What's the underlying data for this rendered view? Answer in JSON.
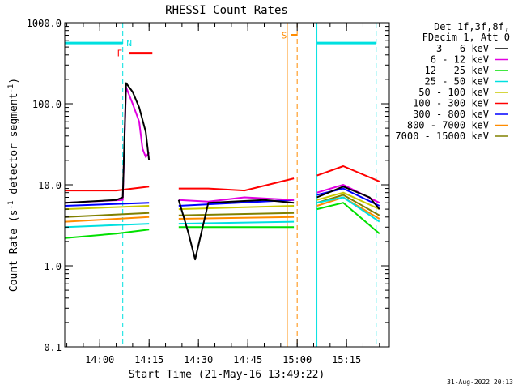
{
  "chart_data": {
    "type": "line",
    "title": "RHESSI Count Rates",
    "xlabel": "Start Time (21-May-16 13:49:22)",
    "ylabel_main": "Count Rate (s",
    "ylabel_sup1": "-1",
    "ylabel_mid": " detector segment",
    "ylabel_sup2": "-1",
    "ylabel_end": ")",
    "yscale": "log",
    "ylim": [
      0.1,
      1000.0
    ],
    "xlim": [
      "13:49:22",
      "15:28:00"
    ],
    "y_ticks": [
      "0.1",
      "1.0",
      "10.0",
      "100.0",
      "1000.0"
    ],
    "x_ticks": [
      "14:00",
      "14:15",
      "14:30",
      "14:45",
      "15:00",
      "15:15"
    ],
    "legend_header": [
      "Det 1f,3f,8f,",
      "FDecim 1, Att 0"
    ],
    "footer_date": "31-Aug-2022 20:13",
    "series": [
      {
        "name": "3 - 6 keV",
        "color": "#000000",
        "points": [
          [
            "13:49:30",
            6.0
          ],
          [
            "14:05",
            6.5
          ],
          [
            "14:07",
            7.0
          ],
          [
            "14:08",
            180
          ],
          [
            "14:10",
            140
          ],
          [
            "14:12",
            90
          ],
          [
            "14:14",
            45
          ],
          [
            "14:15",
            20
          ],
          [
            "14:16",
            null
          ],
          [
            "14:24",
            6.5
          ],
          [
            "14:27",
            2.5
          ],
          [
            "14:29",
            1.2
          ],
          [
            "14:33",
            6.0
          ],
          [
            "14:50",
            6.5
          ],
          [
            "14:59",
            6.0
          ],
          [
            "15:03",
            null
          ],
          [
            "15:06",
            7.0
          ],
          [
            "15:14",
            9.5
          ],
          [
            "15:22",
            7.0
          ],
          [
            "15:25",
            5.0
          ]
        ]
      },
      {
        "name": "6 - 12 keV",
        "color": "#e000e0",
        "points": [
          [
            "13:49:30",
            6.0
          ],
          [
            "14:07",
            6.5
          ],
          [
            "14:08",
            160
          ],
          [
            "14:10",
            100
          ],
          [
            "14:12",
            60
          ],
          [
            "14:13",
            28
          ],
          [
            "14:14",
            22
          ],
          [
            "14:15",
            25
          ],
          [
            "14:16",
            null
          ],
          [
            "14:24",
            6.5
          ],
          [
            "14:33",
            6.2
          ],
          [
            "14:44",
            7.0
          ],
          [
            "14:59",
            6.5
          ],
          [
            "15:03",
            null
          ],
          [
            "15:06",
            8.0
          ],
          [
            "15:14",
            10.0
          ],
          [
            "15:25",
            6.0
          ]
        ]
      },
      {
        "name": "12 - 25 keV",
        "color": "#00e000",
        "points": [
          [
            "13:49:30",
            2.2
          ],
          [
            "14:05",
            2.5
          ],
          [
            "14:15",
            2.8
          ],
          [
            "14:16",
            null
          ],
          [
            "14:24",
            3.0
          ],
          [
            "14:45",
            3.0
          ],
          [
            "14:59",
            3.0
          ],
          [
            "15:03",
            null
          ],
          [
            "15:06",
            5.0
          ],
          [
            "15:14",
            6.0
          ],
          [
            "15:25",
            2.5
          ]
        ]
      },
      {
        "name": "25 - 50 keV",
        "color": "#00e0e0",
        "points": [
          [
            "13:49:30",
            3.0
          ],
          [
            "14:15",
            3.3
          ],
          [
            "14:16",
            null
          ],
          [
            "14:24",
            3.3
          ],
          [
            "14:59",
            3.5
          ],
          [
            "15:03",
            null
          ],
          [
            "15:06",
            6.0
          ],
          [
            "15:14",
            7.0
          ],
          [
            "15:25",
            3.5
          ]
        ]
      },
      {
        "name": "50 - 100 keV",
        "color": "#c8c800",
        "points": [
          [
            "13:49:30",
            5.0
          ],
          [
            "14:15",
            5.5
          ],
          [
            "14:16",
            null
          ],
          [
            "14:24",
            5.0
          ],
          [
            "14:59",
            5.5
          ],
          [
            "15:03",
            null
          ],
          [
            "15:06",
            6.5
          ],
          [
            "15:14",
            8.0
          ],
          [
            "15:25",
            5.0
          ]
        ]
      },
      {
        "name": "100 - 300 keV",
        "color": "#ff0000",
        "points": [
          [
            "13:49:30",
            8.5
          ],
          [
            "14:05",
            8.5
          ],
          [
            "14:15",
            9.5
          ],
          [
            "14:16",
            null
          ],
          [
            "14:24",
            9.0
          ],
          [
            "14:33",
            9.0
          ],
          [
            "14:44",
            8.5
          ],
          [
            "14:59",
            12.0
          ],
          [
            "15:03",
            null
          ],
          [
            "15:06",
            13.0
          ],
          [
            "15:14",
            17.0
          ],
          [
            "15:25",
            11.0
          ]
        ]
      },
      {
        "name": "300 - 800 keV",
        "color": "#0000ff",
        "points": [
          [
            "13:49:30",
            5.5
          ],
          [
            "14:15",
            6.0
          ],
          [
            "14:16",
            null
          ],
          [
            "14:24",
            5.5
          ],
          [
            "14:59",
            6.5
          ],
          [
            "15:03",
            null
          ],
          [
            "15:06",
            7.5
          ],
          [
            "15:14",
            9.0
          ],
          [
            "15:25",
            5.5
          ]
        ]
      },
      {
        "name": "800 - 7000 keV",
        "color": "#ff8c00",
        "points": [
          [
            "13:49:30",
            3.5
          ],
          [
            "14:15",
            4.0
          ],
          [
            "14:16",
            null
          ],
          [
            "14:24",
            3.8
          ],
          [
            "14:59",
            4.0
          ],
          [
            "15:03",
            null
          ],
          [
            "15:06",
            5.5
          ],
          [
            "15:14",
            7.0
          ],
          [
            "15:25",
            3.8
          ]
        ]
      },
      {
        "name": "7000 - 15000 keV",
        "color": "#808000",
        "points": [
          [
            "13:49:30",
            4.0
          ],
          [
            "14:15",
            4.5
          ],
          [
            "14:16",
            null
          ],
          [
            "14:24",
            4.2
          ],
          [
            "14:59",
            4.5
          ],
          [
            "15:03",
            null
          ],
          [
            "15:06",
            6.0
          ],
          [
            "15:14",
            7.5
          ],
          [
            "15:25",
            4.2
          ]
        ]
      }
    ],
    "markers": {
      "flags": [
        {
          "label": "N",
          "color": "#00e0e0",
          "time": "14:07"
        },
        {
          "label": "F",
          "color": "#ff0000",
          "time": "14:08"
        },
        {
          "label": "S",
          "color": "#ff8c00",
          "time": "14:58"
        }
      ],
      "vlines": [
        {
          "time": "13:49:22",
          "color": "#00e0e0",
          "style": "solid"
        },
        {
          "time": "14:07",
          "color": "#00e0e0",
          "style": "dashed"
        },
        {
          "time": "14:57",
          "color": "#ff8c00",
          "style": "solid"
        },
        {
          "time": "15:00",
          "color": "#ff8c00",
          "style": "dashed"
        },
        {
          "time": "15:06",
          "color": "#00e0e0",
          "style": "solid"
        },
        {
          "time": "15:24",
          "color": "#00e0e0",
          "style": "dashed"
        }
      ],
      "bars": [
        {
          "name": "night",
          "color": "#00e0e0",
          "level": 560,
          "ranges": [
            [
              "13:49:22",
              "14:07"
            ],
            [
              "15:06",
              "15:24"
            ]
          ]
        },
        {
          "name": "flare",
          "color": "#ff0000",
          "level": 420,
          "ranges": [
            [
              "14:09",
              "14:16"
            ]
          ]
        },
        {
          "name": "saa",
          "color": "#ff8c00",
          "level": 700,
          "ranges": [
            [
              "14:58",
              "15:00"
            ]
          ]
        }
      ]
    }
  }
}
